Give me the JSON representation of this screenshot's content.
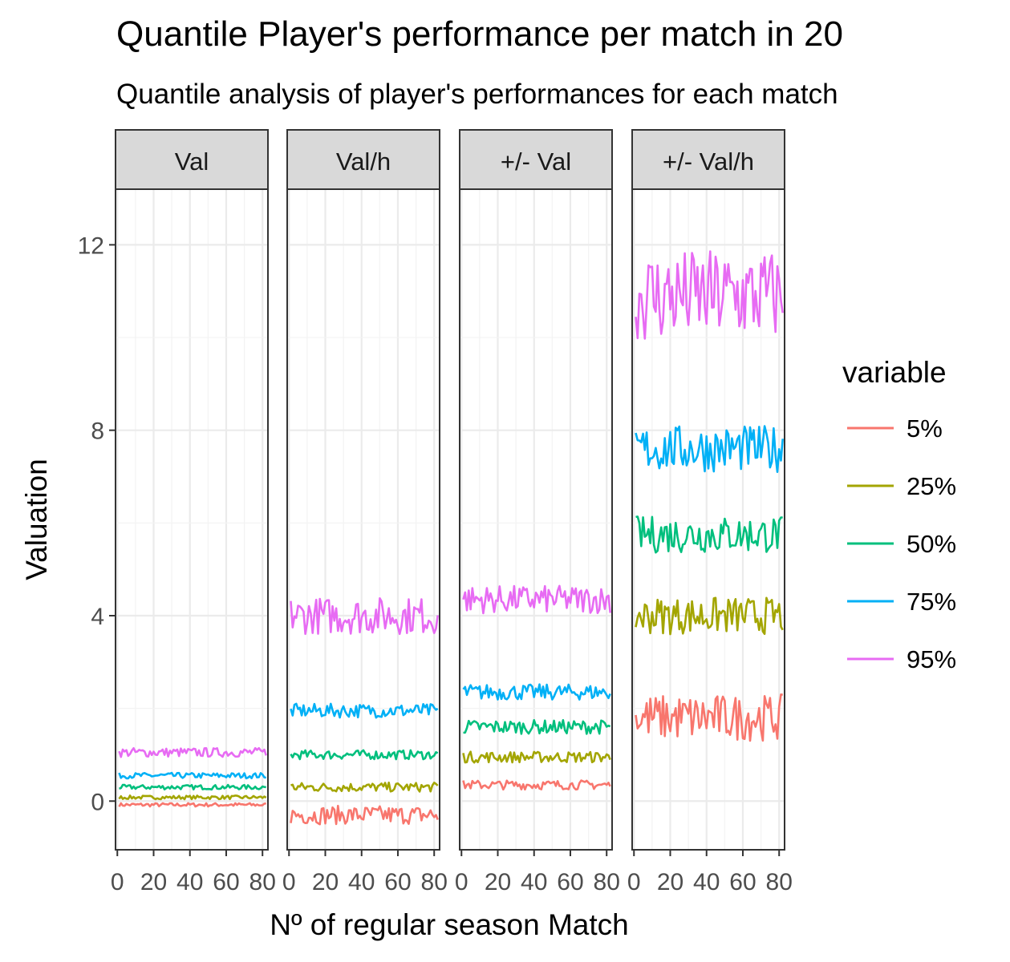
{
  "chart_data": {
    "type": "line",
    "title": "Quantile Player's performance per match in 20",
    "subtitle": "Quantile analysis of player's performances for each match",
    "xlabel": "Nº of regular season Match",
    "ylabel": "Valuation",
    "xlim": [
      -1,
      83
    ],
    "ylim": [
      -1.05,
      13.2
    ],
    "x_ticks": [
      0,
      20,
      40,
      60,
      80
    ],
    "x_tick_labels": [
      "0",
      "20",
      "40",
      "60",
      "80"
    ],
    "y_ticks": [
      0,
      4,
      8,
      12
    ],
    "y_tick_labels": [
      "0",
      "4",
      "8",
      "12"
    ],
    "grid": true,
    "x_range": [
      1,
      82
    ],
    "legend": {
      "title": "variable",
      "position": "right",
      "entries": [
        "5%",
        "25%",
        "50%",
        "75%",
        "95%"
      ]
    },
    "series_colors": {
      "5%": "#F8766D",
      "25%": "#A3A500",
      "50%": "#00BF7D",
      "75%": "#00B0F6",
      "95%": "#E76BF3"
    },
    "facets": [
      {
        "label": "Val",
        "series": [
          {
            "name": "5%",
            "mean": -0.08,
            "amplitude": 0.04
          },
          {
            "name": "25%",
            "mean": 0.08,
            "amplitude": 0.04
          },
          {
            "name": "50%",
            "mean": 0.3,
            "amplitude": 0.05
          },
          {
            "name": "75%",
            "mean": 0.55,
            "amplitude": 0.06
          },
          {
            "name": "95%",
            "mean": 1.05,
            "amplitude": 0.1
          }
        ]
      },
      {
        "label": "Val/h",
        "series": [
          {
            "name": "5%",
            "mean": -0.3,
            "amplitude": 0.2
          },
          {
            "name": "25%",
            "mean": 0.3,
            "amplitude": 0.1
          },
          {
            "name": "50%",
            "mean": 1.0,
            "amplitude": 0.1
          },
          {
            "name": "75%",
            "mean": 1.95,
            "amplitude": 0.15
          },
          {
            "name": "95%",
            "mean": 4.0,
            "amplitude": 0.4
          }
        ]
      },
      {
        "label": "+/- Val",
        "series": [
          {
            "name": "5%",
            "mean": 0.35,
            "amplitude": 0.1
          },
          {
            "name": "25%",
            "mean": 0.95,
            "amplitude": 0.12
          },
          {
            "name": "50%",
            "mean": 1.6,
            "amplitude": 0.15
          },
          {
            "name": "75%",
            "mean": 2.35,
            "amplitude": 0.17
          },
          {
            "name": "95%",
            "mean": 4.35,
            "amplitude": 0.3
          }
        ]
      },
      {
        "label": "+/- Val/h",
        "series": [
          {
            "name": "5%",
            "mean": 1.8,
            "amplitude": 0.5
          },
          {
            "name": "25%",
            "mean": 4.0,
            "amplitude": 0.4
          },
          {
            "name": "50%",
            "mean": 5.75,
            "amplitude": 0.4
          },
          {
            "name": "75%",
            "mean": 7.6,
            "amplitude": 0.5
          },
          {
            "name": "95%",
            "mean": 10.9,
            "amplitude": 1.0
          }
        ]
      }
    ]
  }
}
